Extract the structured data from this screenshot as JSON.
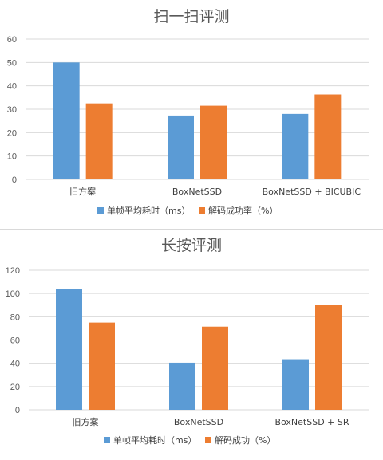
{
  "chart_data": [
    {
      "type": "bar",
      "title": "扫一扫评测",
      "categories": [
        "旧方案",
        "BoxNetSSD",
        "BoxNetSSD + BICUBIC"
      ],
      "ylim": [
        0,
        60
      ],
      "yticks": [
        0,
        10,
        20,
        30,
        40,
        50,
        60
      ],
      "grid": true,
      "legend_position": "bottom",
      "series": [
        {
          "name": "单帧平均耗时（ms）",
          "color": "#5b9bd5",
          "values": [
            50,
            27.3,
            28
          ]
        },
        {
          "name": "解码成功率（%）",
          "color": "#ed7d31",
          "values": [
            32.5,
            31.5,
            36.3
          ]
        }
      ]
    },
    {
      "type": "bar",
      "title": "长按评测",
      "categories": [
        "旧方案",
        "BoxNetSSD",
        "BoxNetSSD + SR"
      ],
      "ylim": [
        0,
        120
      ],
      "yticks": [
        0,
        20,
        40,
        60,
        80,
        100,
        120
      ],
      "grid": true,
      "legend_position": "bottom",
      "series": [
        {
          "name": "单帧平均耗时（ms）",
          "color": "#5b9bd5",
          "values": [
            104,
            40.5,
            43.5
          ]
        },
        {
          "name": "解码成功（%）",
          "color": "#ed7d31",
          "values": [
            75,
            71.5,
            90
          ]
        }
      ]
    }
  ]
}
